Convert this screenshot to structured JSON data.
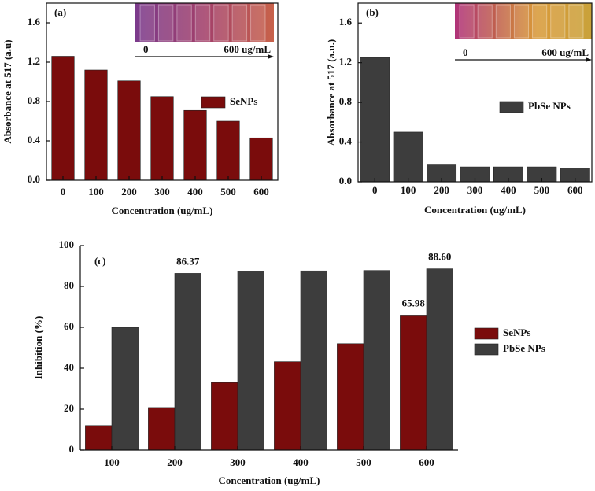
{
  "chart_data": [
    {
      "type": "bar",
      "panel_label": "(a)",
      "x_label": "Concentration (ug/mL)",
      "y_label": "Absorbance at 517 (a.u)",
      "categories": [
        "0",
        "100",
        "200",
        "300",
        "400",
        "500",
        "600"
      ],
      "series": [
        {
          "name": "SeNPs",
          "color": "#7a0c0c",
          "values": [
            1.26,
            1.12,
            1.01,
            0.85,
            0.71,
            0.6,
            0.43
          ]
        }
      ],
      "ylim": [
        0,
        1.8
      ],
      "yticks": [
        {
          "value": 0,
          "label": "0.0"
        },
        0.4,
        0.8,
        1.2,
        1.6
      ],
      "legend": "right",
      "inset_labels": [
        "0",
        "600 ug/mL"
      ]
    },
    {
      "type": "bar",
      "panel_label": "(b)",
      "x_label": "Concentration (ug/mL)",
      "y_label": "Absorbance at 517 (a.u.)",
      "categories": [
        "0",
        "100",
        "200",
        "300",
        "400",
        "500",
        "600"
      ],
      "series": [
        {
          "name": "PbSe NPs",
          "color": "#3d3d3d",
          "values": [
            1.25,
            0.5,
            0.17,
            0.15,
            0.15,
            0.15,
            0.14
          ]
        }
      ],
      "ylim": [
        0,
        1.8
      ],
      "yticks": [
        {
          "value": 0,
          "label": "0.0"
        },
        0.4,
        0.8,
        1.2,
        1.6
      ],
      "legend": "right",
      "inset_labels": [
        "0",
        "600 ug/mL"
      ]
    },
    {
      "type": "bar",
      "panel_label": "(c)",
      "x_label": "Concentration (ug/mL)",
      "y_label": "Inhibition (%)",
      "categories": [
        "100",
        "200",
        "300",
        "400",
        "500",
        "600"
      ],
      "series": [
        {
          "name": "SeNPs",
          "color": "#7a0c0c",
          "values": [
            12,
            20.8,
            33,
            43.2,
            52,
            65.98
          ],
          "value_labels": [
            null,
            null,
            null,
            null,
            null,
            "65.98"
          ]
        },
        {
          "name": "PbSe NPs",
          "color": "#3d3d3d",
          "values": [
            60,
            86.37,
            87.5,
            87.6,
            87.8,
            88.6
          ],
          "value_labels": [
            null,
            "86.37",
            null,
            null,
            null,
            "88.60"
          ]
        }
      ],
      "ylim": [
        0,
        100
      ],
      "yticks": [
        0,
        20,
        40,
        60,
        80,
        100
      ],
      "legend": "outside right"
    }
  ]
}
